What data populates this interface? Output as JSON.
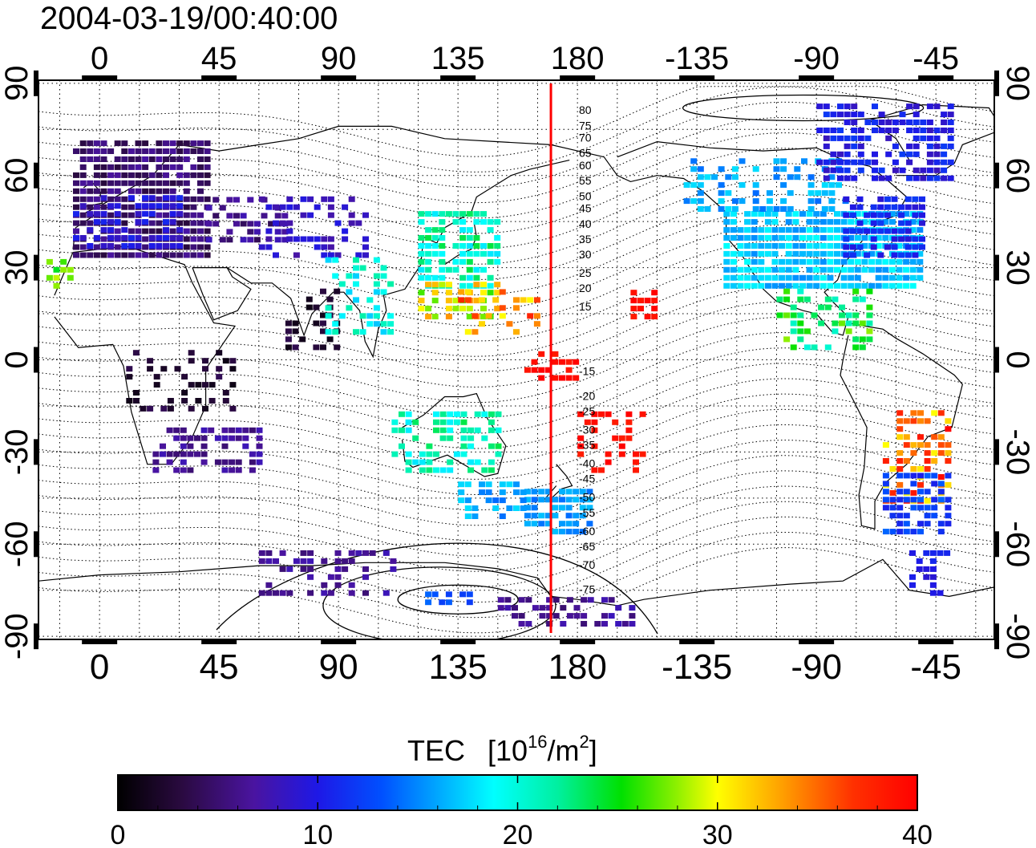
{
  "title": "2004-03-19/00:40:00",
  "map": {
    "lon_ticks": [
      "0",
      "45",
      "90",
      "135",
      "180",
      "-135",
      "-90",
      "-45"
    ],
    "lon_tick_values": [
      0,
      45,
      90,
      135,
      180,
      225,
      270,
      315
    ],
    "lat_ticks": [
      "90",
      "60",
      "30",
      "0",
      "-30",
      "-60",
      "-90"
    ],
    "lat_tick_values": [
      90,
      60,
      30,
      0,
      -30,
      -60,
      -90
    ],
    "lon_range": [
      -23,
      337
    ],
    "lat_range": [
      -91,
      91
    ],
    "meridian_line_lon": 170,
    "meridian_line_color": "#ff0000",
    "contour_labels": [
      "80",
      "75",
      "70",
      "65",
      "60",
      "55",
      "50",
      "45",
      "40",
      "35",
      "30",
      "25",
      "20",
      "15",
      "-15",
      "-20",
      "-25",
      "-30",
      "-35",
      "-40",
      "-45",
      "-50",
      "-55",
      "-60",
      "-65",
      "-70",
      "-75"
    ],
    "contour_label_lats": [
      80,
      75,
      71,
      66,
      62,
      57,
      52,
      48,
      43,
      38,
      33,
      27,
      22,
      16,
      -5,
      -13,
      -18,
      -24,
      -29,
      -35,
      -40,
      -46,
      -51,
      -57,
      -62,
      -68,
      -76
    ]
  },
  "colorbar": {
    "title": "TEC",
    "unit_prefix": "[10",
    "unit_exp": "16",
    "unit_mid": "/m",
    "unit_exp2": "2",
    "unit_suffix": "]",
    "min": 0,
    "max": 40,
    "tick_labels": [
      "0",
      "10",
      "20",
      "30",
      "40"
    ],
    "colors": [
      "#000000",
      "#2a0a4a",
      "#4a1aa0",
      "#2a1ad8",
      "#0a3cff",
      "#0aa0ff",
      "#00ffff",
      "#00e070",
      "#00e000",
      "#a0f000",
      "#ffff00",
      "#ffb000",
      "#ff5000",
      "#ff0000",
      "#ff0020"
    ]
  }
}
